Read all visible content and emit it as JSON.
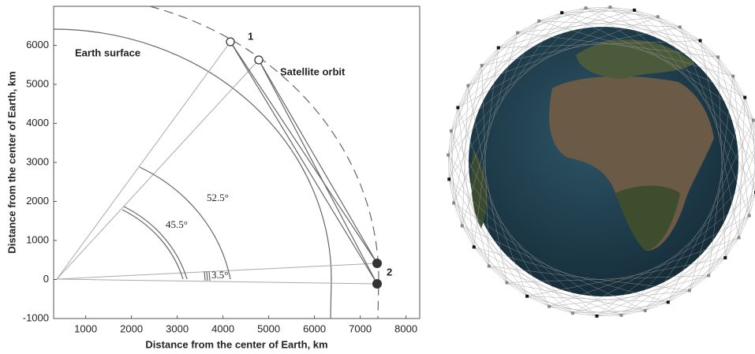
{
  "chart_data": {
    "type": "diagram",
    "xlabel": "Distance from the center of Earth, km",
    "ylabel": "Distance from the center of Earth, km",
    "xlim": [
      300,
      8300
    ],
    "xticks": [
      1000,
      2000,
      3000,
      4000,
      5000,
      6000,
      7000,
      8000
    ],
    "ylim": [
      -1000,
      7000
    ],
    "yticks": [
      -1000,
      0,
      1000,
      2000,
      3000,
      4000,
      5000,
      6000
    ],
    "grid": false,
    "annotations": [
      "Earth surface",
      "Satellite orbit",
      "52.5°",
      "45.5°",
      "3.5°",
      "1",
      "2"
    ]
  }
}
